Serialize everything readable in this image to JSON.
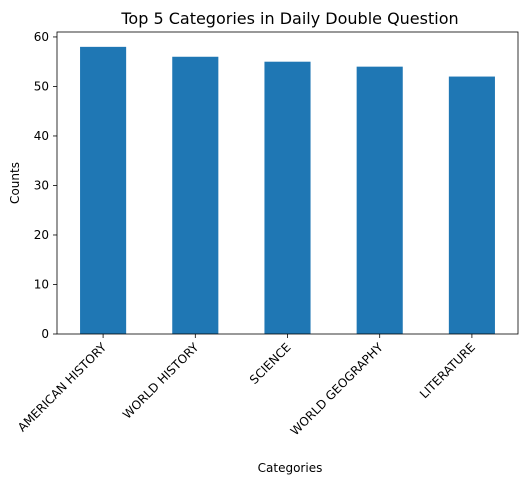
{
  "chart_data": {
    "type": "bar",
    "title": "Top 5 Categories in Daily Double Question",
    "xlabel": "Categories",
    "ylabel": "Counts",
    "categories": [
      "AMERICAN HISTORY",
      "WORLD HISTORY",
      "SCIENCE",
      "WORLD GEOGRAPHY",
      "LITERATURE"
    ],
    "values": [
      58,
      56,
      55,
      54,
      52
    ],
    "ylim": [
      0,
      61
    ],
    "yticks": [
      0,
      10,
      20,
      30,
      40,
      50,
      60
    ],
    "bar_color": "#1f77b4",
    "grid": false,
    "legend": "none"
  }
}
